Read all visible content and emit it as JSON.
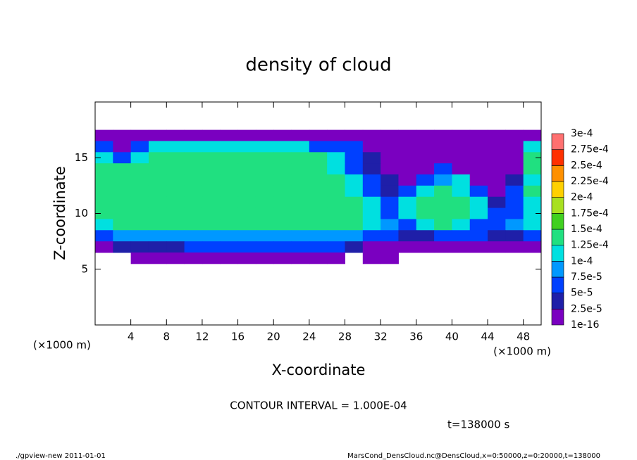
{
  "chart_data": {
    "type": "heatmap",
    "title": "density of cloud",
    "x_label": "X-coordinate",
    "y_label": "Z-coordinate",
    "x_unit_left": "(×1000 m)",
    "x_unit_right": "(×1000 m)",
    "contour_interval": "CONTOUR INTERVAL = 1.000E-04",
    "time_label": "t=138000 s",
    "footer_left": "./gpview-new  2011-01-01",
    "footer_right": "MarsCond_DensCloud.nc@DensCloud,x=0:50000,z=0:20000,t=138000",
    "xlim": [
      0,
      50
    ],
    "ylim": [
      0,
      20
    ],
    "xticks": [
      4,
      8,
      12,
      16,
      20,
      24,
      28,
      32,
      36,
      40,
      44,
      48
    ],
    "yticks": [
      5,
      10,
      15
    ],
    "x": [
      1,
      3,
      5,
      7,
      9,
      11,
      13,
      15,
      17,
      19,
      21,
      23,
      25,
      27,
      29,
      31,
      33,
      35,
      37,
      39,
      41,
      43,
      45,
      47,
      49
    ],
    "y": [
      17,
      16,
      15,
      14,
      13,
      12,
      11,
      10,
      9,
      8,
      7,
      6
    ],
    "z": [
      [
        1e-05,
        1e-05,
        1e-05,
        1e-05,
        1e-05,
        1e-05,
        1e-05,
        1e-05,
        1e-05,
        1e-05,
        1e-05,
        1e-05,
        1e-05,
        1e-05,
        1e-05,
        1e-05,
        1e-05,
        1e-05,
        1e-05,
        1e-05,
        1e-05,
        1e-05,
        1e-05,
        1e-05,
        1e-05
      ],
      [
        5e-05,
        1e-05,
        5e-05,
        0.00012,
        0.00012,
        0.00012,
        0.00012,
        0.00012,
        0.00012,
        0.00012,
        0.00012,
        0.00012,
        5e-05,
        5e-05,
        5e-05,
        1e-05,
        1e-05,
        1e-05,
        1e-05,
        1e-05,
        1e-05,
        1e-05,
        1e-05,
        1e-05,
        0.0001
      ],
      [
        0.0001,
        5e-05,
        0.0001,
        0.00014,
        0.00014,
        0.00014,
        0.00014,
        0.00014,
        0.00014,
        0.00014,
        0.00014,
        0.00014,
        0.00013,
        0.0001,
        5e-05,
        3e-05,
        1e-05,
        1e-05,
        2e-05,
        1e-05,
        1e-05,
        1e-05,
        1e-05,
        1e-05,
        0.00014
      ],
      [
        0.000145,
        0.000145,
        0.000145,
        0.000145,
        0.000145,
        0.000145,
        0.000145,
        0.000145,
        0.000145,
        0.000145,
        0.000145,
        0.000145,
        0.00014,
        0.00012,
        6e-05,
        4e-05,
        2e-05,
        1e-05,
        1e-05,
        5e-05,
        1e-05,
        1e-05,
        1e-05,
        2e-05,
        0.00014
      ],
      [
        0.000145,
        0.000145,
        0.000145,
        0.000145,
        0.000145,
        0.000145,
        0.000145,
        0.000145,
        0.000145,
        0.000145,
        0.000145,
        0.000145,
        0.000145,
        0.00013,
        0.0001,
        5e-05,
        3e-05,
        2e-05,
        5e-05,
        8e-05,
        0.0001,
        2e-05,
        1e-05,
        3e-05,
        0.00012
      ],
      [
        0.000145,
        0.000145,
        0.000145,
        0.000145,
        0.000145,
        0.000145,
        0.000145,
        0.000145,
        0.000145,
        0.000145,
        0.000145,
        0.000145,
        0.000145,
        0.000145,
        0.00011,
        6e-05,
        4e-05,
        7e-05,
        0.00012,
        0.00014,
        0.00012,
        6e-05,
        2e-05,
        5e-05,
        0.00013
      ],
      [
        0.000145,
        0.000145,
        0.000145,
        0.000145,
        0.000145,
        0.000145,
        0.000145,
        0.000145,
        0.000145,
        0.000145,
        0.000145,
        0.000145,
        0.000145,
        0.000145,
        0.000145,
        0.0001,
        6e-05,
        0.00012,
        0.00014,
        0.000145,
        0.00014,
        0.0001,
        4e-05,
        6e-05,
        0.0001
      ],
      [
        0.00013,
        0.000145,
        0.000145,
        0.000145,
        0.000145,
        0.000145,
        0.000145,
        0.000145,
        0.000145,
        0.000145,
        0.000145,
        0.000145,
        0.000145,
        0.000145,
        0.000145,
        0.00011,
        7e-05,
        0.00012,
        0.00014,
        0.00014,
        0.00014,
        0.00011,
        5e-05,
        7e-05,
        0.00011
      ],
      [
        0.0001,
        0.000135,
        0.000135,
        0.000135,
        0.000135,
        0.000135,
        0.000135,
        0.000135,
        0.000135,
        0.000135,
        0.000135,
        0.000135,
        0.000135,
        0.000135,
        0.000135,
        0.00011,
        8e-05,
        6e-05,
        0.0001,
        0.00013,
        0.00011,
        7e-05,
        6e-05,
        8e-05,
        0.0001
      ],
      [
        5e-05,
        9e-05,
        9e-05,
        9e-05,
        9e-05,
        9e-05,
        9e-05,
        9e-05,
        9e-05,
        9e-05,
        9e-05,
        9e-05,
        9e-05,
        9e-05,
        9e-05,
        7e-05,
        5e-05,
        3e-05,
        4e-05,
        6e-05,
        7e-05,
        5e-05,
        3e-05,
        4e-05,
        5e-05
      ],
      [
        2e-05,
        3e-05,
        3e-05,
        3e-05,
        3e-05,
        5e-05,
        5e-05,
        5e-05,
        5e-05,
        5e-05,
        5e-05,
        5e-05,
        5e-05,
        5e-05,
        4e-05,
        2e-05,
        1e-05,
        1e-05,
        1e-05,
        1e-05,
        1e-05,
        1e-05,
        1e-05,
        1e-05,
        2e-05
      ],
      [
        null,
        null,
        1e-05,
        1e-05,
        1e-05,
        1e-05,
        1e-05,
        1e-05,
        1e-05,
        1e-05,
        1e-05,
        1e-05,
        1e-05,
        1e-05,
        null,
        1e-05,
        1e-05,
        null,
        null,
        null,
        null,
        null,
        null,
        null,
        null
      ]
    ],
    "levels": [
      1e-16,
      {
        "value": 2.5e-05,
        "label": "2.5e-5"
      },
      {
        "value": 5e-05,
        "label": "5e-5"
      },
      {
        "value": 7.5e-05,
        "label": "7.5e-5"
      },
      {
        "value": 0.0001,
        "label": "1e-4"
      },
      {
        "value": 0.000125,
        "label": "1.25e-4"
      },
      {
        "value": 0.00015,
        "label": "1.5e-4"
      },
      {
        "value": 0.000175,
        "label": "1.75e-4"
      },
      {
        "value": 0.0002,
        "label": "2e-4"
      },
      {
        "value": 0.000225,
        "label": "2.25e-4"
      },
      {
        "value": 0.00025,
        "label": "2.5e-4"
      },
      {
        "value": 0.000275,
        "label": "2.75e-4"
      },
      {
        "value": 0.0003,
        "label": "3e-4"
      }
    ],
    "colors": [
      "#7a00c0",
      "#1f1fa8",
      "#0040ff",
      "#0098ff",
      "#00e0e0",
      "#20e080",
      "#40d020",
      "#a8e020",
      "#ffd000",
      "#ff9000",
      "#ff3000",
      "#ff7070"
    ]
  }
}
